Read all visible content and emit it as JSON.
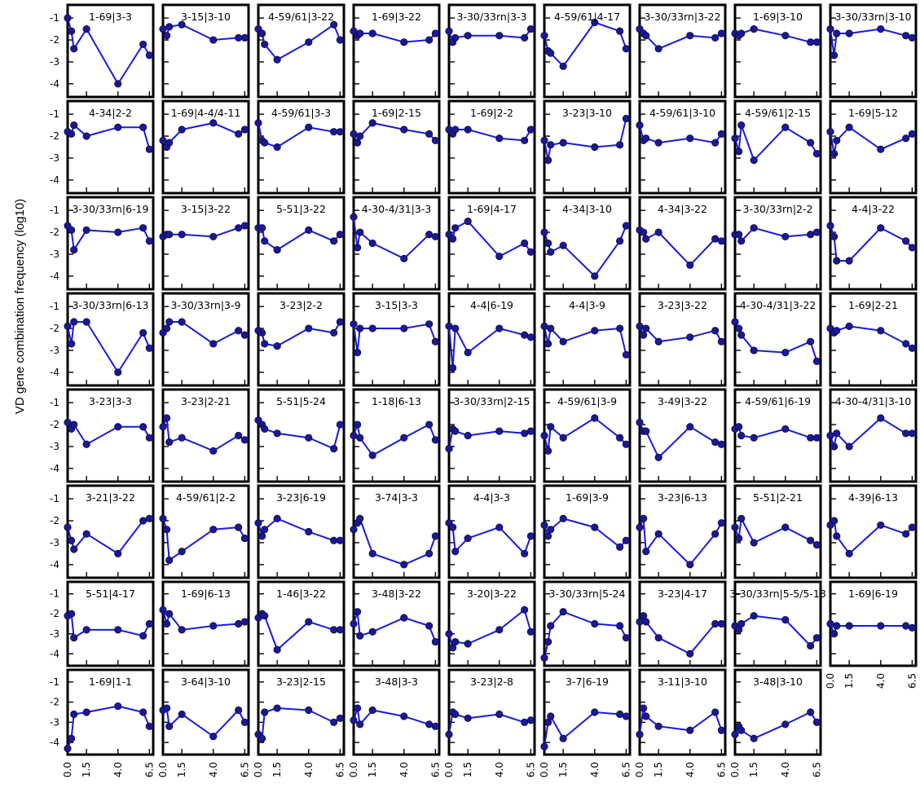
{
  "chart_data": {
    "type": "line",
    "ylabel": "VD gene combination frequency (log10)",
    "x": [
      0.0,
      0.3,
      0.5,
      1.5,
      4.0,
      6.0,
      6.5
    ],
    "x_tick_labels": [
      "0.0",
      "1.5",
      "4.0",
      "6.5"
    ],
    "y_tick_labels": [
      "-1",
      "-2",
      "-3",
      "-4"
    ],
    "ylim": [
      -4.6,
      -0.4
    ],
    "xlim": [
      0,
      6.8
    ],
    "grid": false,
    "legend": "none",
    "line_color": "#1a1adf",
    "marker_color": "#1a1a8c",
    "series": [
      {
        "name": "1-69|3-3",
        "values": [
          -1.0,
          -1.6,
          -2.4,
          -1.5,
          -4.0,
          -2.2,
          -2.7
        ]
      },
      {
        "name": "3-15|3-10",
        "values": [
          -1.5,
          -1.8,
          -1.4,
          -1.3,
          -2.0,
          -1.9,
          -1.9
        ]
      },
      {
        "name": "4-59/61|3-22",
        "values": [
          -1.5,
          -1.7,
          -2.2,
          -2.9,
          -2.1,
          -1.3,
          -2.0
        ]
      },
      {
        "name": "1-69|3-22",
        "values": [
          -1.6,
          -1.8,
          -1.7,
          -1.7,
          -2.1,
          -2.0,
          -1.7
        ]
      },
      {
        "name": "3-30/33rn|3-3",
        "values": [
          -1.6,
          -2.1,
          -1.9,
          -1.8,
          -1.8,
          -1.9,
          -1.5
        ]
      },
      {
        "name": "4-59/61|4-17",
        "values": [
          -1.8,
          -2.5,
          -2.6,
          -3.2,
          -1.2,
          -1.6,
          -2.4
        ]
      },
      {
        "name": "3-30/33rn|3-22",
        "values": [
          -1.5,
          -1.7,
          -1.8,
          -2.4,
          -1.8,
          -1.9,
          -1.7
        ]
      },
      {
        "name": "1-69|3-10",
        "values": [
          -1.7,
          -1.8,
          -1.7,
          -1.5,
          -1.8,
          -2.1,
          -2.1
        ]
      },
      {
        "name": "3-30/33rn|3-10",
        "values": [
          -1.5,
          -2.7,
          -1.7,
          -1.7,
          -1.5,
          -1.8,
          -1.9
        ]
      },
      {
        "name": "4-34|2-2",
        "values": [
          -1.8,
          -1.9,
          -1.5,
          -2.0,
          -1.6,
          -1.6,
          -2.6
        ]
      },
      {
        "name": "1-69|4-4/4-11",
        "values": [
          -2.2,
          -2.5,
          -2.3,
          -1.7,
          -1.4,
          -1.9,
          -1.7
        ]
      },
      {
        "name": "4-59/61|3-3",
        "values": [
          -1.4,
          -2.2,
          -2.3,
          -2.5,
          -1.6,
          -1.8,
          -1.8
        ]
      },
      {
        "name": "1-69|2-15",
        "values": [
          -1.9,
          -2.3,
          -2.0,
          -1.4,
          -1.7,
          -1.9,
          -2.2
        ]
      },
      {
        "name": "1-69|2-2",
        "values": [
          -1.7,
          -1.9,
          -1.7,
          -1.7,
          -2.1,
          -2.2,
          -1.7
        ]
      },
      {
        "name": "3-23|3-10",
        "values": [
          -2.2,
          -3.1,
          -2.4,
          -2.3,
          -2.5,
          -2.4,
          -1.2
        ]
      },
      {
        "name": "4-59/61|3-10",
        "values": [
          -1.5,
          -2.2,
          -2.1,
          -2.3,
          -2.1,
          -2.3,
          -1.9
        ]
      },
      {
        "name": "4-59/61|2-15",
        "values": [
          -2.1,
          -2.7,
          -1.5,
          -3.1,
          -1.6,
          -2.3,
          -2.8
        ]
      },
      {
        "name": "1-69|5-12",
        "values": [
          -1.8,
          -2.8,
          -2.2,
          -1.6,
          -2.6,
          -2.1,
          -1.9
        ]
      },
      {
        "name": "3-30/33rn|6-19",
        "values": [
          -1.7,
          -1.9,
          -2.8,
          -1.9,
          -2.0,
          -1.8,
          -2.4
        ]
      },
      {
        "name": "3-15|3-22",
        "values": [
          -2.2,
          -2.1,
          -2.1,
          -2.1,
          -2.2,
          -1.8,
          -1.7
        ]
      },
      {
        "name": "5-51|3-22",
        "values": [
          -1.8,
          -1.8,
          -2.4,
          -2.8,
          -1.9,
          -2.4,
          -2.1
        ]
      },
      {
        "name": "4-30-4/31|3-3",
        "values": [
          -1.3,
          -2.7,
          -2.0,
          -2.5,
          -3.2,
          -2.1,
          -2.2
        ]
      },
      {
        "name": "1-69|4-17",
        "values": [
          -2.1,
          -2.3,
          -1.8,
          -1.5,
          -3.1,
          -2.5,
          -2.9
        ]
      },
      {
        "name": "4-34|3-10",
        "values": [
          -2.0,
          -2.5,
          -2.9,
          -2.6,
          -4.0,
          -2.4,
          -1.7
        ]
      },
      {
        "name": "4-34|3-22",
        "values": [
          -1.9,
          -2.0,
          -2.3,
          -2.0,
          -3.5,
          -2.3,
          -2.4
        ]
      },
      {
        "name": "3-30/33rn|2-2",
        "values": [
          -2.1,
          -2.1,
          -2.4,
          -1.8,
          -2.2,
          -2.1,
          -2.0
        ]
      },
      {
        "name": "4-4|3-22",
        "values": [
          -1.7,
          -2.2,
          -3.3,
          -3.3,
          -1.8,
          -2.4,
          -2.7
        ]
      },
      {
        "name": "3-30/33rn|6-13",
        "values": [
          -1.9,
          -2.7,
          -1.7,
          -1.7,
          -4.0,
          -2.2,
          -2.9
        ]
      },
      {
        "name": "3-30/33rn|3-9",
        "values": [
          -2.2,
          -2.0,
          -1.7,
          -1.7,
          -2.7,
          -2.1,
          -2.3
        ]
      },
      {
        "name": "3-23|2-2",
        "values": [
          -2.1,
          -2.2,
          -2.7,
          -2.8,
          -2.0,
          -2.2,
          -1.7
        ]
      },
      {
        "name": "3-15|3-3",
        "values": [
          -1.8,
          -3.1,
          -2.0,
          -2.0,
          -2.0,
          -1.8,
          -2.6
        ]
      },
      {
        "name": "4-4|6-19",
        "values": [
          -1.9,
          -3.8,
          -2.0,
          -3.1,
          -2.0,
          -2.3,
          -2.4
        ]
      },
      {
        "name": "4-4|3-9",
        "values": [
          -1.9,
          -2.7,
          -2.0,
          -2.6,
          -2.1,
          -2.0,
          -3.2
        ]
      },
      {
        "name": "3-23|3-22",
        "values": [
          -1.9,
          -2.3,
          -2.0,
          -2.6,
          -2.4,
          -2.1,
          -2.6
        ]
      },
      {
        "name": "4-30-4/31|3-22",
        "values": [
          -1.7,
          -2.0,
          -2.3,
          -3.0,
          -3.1,
          -2.6,
          -3.5
        ]
      },
      {
        "name": "1-69|2-21",
        "values": [
          -2.0,
          -2.2,
          -2.1,
          -1.9,
          -2.1,
          -2.7,
          -2.9
        ]
      },
      {
        "name": "3-23|3-3",
        "values": [
          -1.9,
          -2.2,
          -2.0,
          -2.9,
          -2.1,
          -2.1,
          -2.6
        ]
      },
      {
        "name": "3-23|2-21",
        "values": [
          -2.1,
          -1.7,
          -2.8,
          -2.6,
          -3.2,
          -2.5,
          -2.7
        ]
      },
      {
        "name": "5-51|5-24",
        "values": [
          -1.8,
          -2.0,
          -2.2,
          -2.4,
          -2.6,
          -3.1,
          -2.0
        ]
      },
      {
        "name": "1-18|6-13",
        "values": [
          -2.5,
          -2.0,
          -2.6,
          -3.4,
          -2.6,
          -2.0,
          -2.7
        ]
      },
      {
        "name": "3-30/33rn|2-15",
        "values": [
          -3.1,
          -2.2,
          -2.3,
          -2.5,
          -2.3,
          -2.4,
          -2.3
        ]
      },
      {
        "name": "4-59/61|3-9",
        "values": [
          -2.5,
          -3.2,
          -2.1,
          -2.6,
          -1.7,
          -2.6,
          -2.9
        ]
      },
      {
        "name": "3-49|3-22",
        "values": [
          -1.9,
          -2.3,
          -2.3,
          -3.5,
          -2.1,
          -2.8,
          -2.9
        ]
      },
      {
        "name": "4-59/61|6-19",
        "values": [
          -2.2,
          -2.1,
          -2.5,
          -2.6,
          -2.2,
          -2.6,
          -2.6
        ]
      },
      {
        "name": "4-30-4/31|3-10",
        "values": [
          -2.5,
          -3.0,
          -2.4,
          -3.0,
          -1.7,
          -2.4,
          -2.4
        ]
      },
      {
        "name": "3-21|3-22",
        "values": [
          -2.3,
          -2.9,
          -3.3,
          -2.6,
          -3.5,
          -2.0,
          -1.9
        ]
      },
      {
        "name": "4-59/61|2-2",
        "values": [
          -1.9,
          -2.4,
          -3.8,
          -3.4,
          -2.4,
          -2.3,
          -2.8
        ]
      },
      {
        "name": "3-23|6-19",
        "values": [
          -2.1,
          -2.7,
          -2.4,
          -1.9,
          -2.5,
          -2.9,
          -2.9
        ]
      },
      {
        "name": "3-74|3-3",
        "values": [
          -2.4,
          -2.1,
          -1.9,
          -3.5,
          -4.0,
          -3.5,
          -2.7
        ]
      },
      {
        "name": "4-4|3-3",
        "values": [
          -2.1,
          -2.3,
          -3.4,
          -2.8,
          -2.3,
          -3.5,
          -2.7
        ]
      },
      {
        "name": "1-69|3-9",
        "values": [
          -2.2,
          -2.7,
          -2.4,
          -1.9,
          -2.3,
          -3.2,
          -2.9
        ]
      },
      {
        "name": "3-23|6-13",
        "values": [
          -2.3,
          -1.9,
          -3.4,
          -2.6,
          -4.0,
          -2.6,
          -2.1
        ]
      },
      {
        "name": "5-51|2-21",
        "values": [
          -2.3,
          -2.8,
          -1.9,
          -3.0,
          -2.3,
          -2.9,
          -3.1
        ]
      },
      {
        "name": "4-39|6-13",
        "values": [
          -2.2,
          -2.0,
          -2.7,
          -3.5,
          -2.2,
          -2.6,
          -2.3
        ]
      },
      {
        "name": "5-51|4-17",
        "values": [
          -2.1,
          -2.0,
          -3.2,
          -2.8,
          -2.8,
          -3.1,
          -2.5
        ]
      },
      {
        "name": "1-69|6-13",
        "values": [
          -1.8,
          -2.5,
          -2.0,
          -2.8,
          -2.6,
          -2.5,
          -2.4
        ]
      },
      {
        "name": "1-46|3-22",
        "values": [
          -2.2,
          -2.0,
          -2.1,
          -3.8,
          -2.4,
          -2.8,
          -2.8
        ]
      },
      {
        "name": "3-48|3-22",
        "values": [
          -2.5,
          -1.9,
          -3.1,
          -2.9,
          -2.2,
          -2.6,
          -3.4
        ]
      },
      {
        "name": "3-20|3-22",
        "values": [
          -3.0,
          -3.7,
          -3.4,
          -3.5,
          -2.8,
          -1.8,
          -2.9
        ]
      },
      {
        "name": "3-30/33rn|5-24",
        "values": [
          -4.2,
          -3.4,
          -2.6,
          -1.9,
          -2.5,
          -2.6,
          -3.2
        ]
      },
      {
        "name": "3-23|4-17",
        "values": [
          -2.4,
          -2.1,
          -2.4,
          -3.2,
          -4.0,
          -2.5,
          -2.5
        ]
      },
      {
        "name": "3-30/33rn|5-5/5-18",
        "values": [
          -2.6,
          -2.8,
          -2.5,
          -2.1,
          -2.3,
          -3.6,
          -3.2
        ]
      },
      {
        "name": "1-69|6-19",
        "values": [
          -2.5,
          -3.0,
          -2.6,
          -2.6,
          -2.6,
          -2.6,
          -2.7
        ]
      },
      {
        "name": "1-69|1-1",
        "values": [
          -4.3,
          -3.8,
          -2.6,
          -2.5,
          -2.2,
          -2.5,
          -3.2
        ]
      },
      {
        "name": "3-64|3-10",
        "values": [
          -2.4,
          -2.3,
          -3.2,
          -2.6,
          -3.7,
          -2.4,
          -3.0
        ]
      },
      {
        "name": "3-23|2-15",
        "values": [
          -3.6,
          -3.8,
          -2.5,
          -2.3,
          -2.4,
          -3.0,
          -2.8
        ]
      },
      {
        "name": "3-48|3-3",
        "values": [
          -2.9,
          -2.3,
          -3.1,
          -2.4,
          -2.7,
          -3.1,
          -3.2
        ]
      },
      {
        "name": "3-23|2-8",
        "values": [
          -3.6,
          -2.5,
          -2.6,
          -2.8,
          -2.6,
          -3.0,
          -2.9
        ]
      },
      {
        "name": "3-7|6-19",
        "values": [
          -4.2,
          -3.0,
          -2.7,
          -3.8,
          -2.5,
          -2.6,
          -2.7
        ]
      },
      {
        "name": "3-11|3-10",
        "values": [
          -3.6,
          -2.3,
          -2.7,
          -3.2,
          -3.4,
          -2.5,
          -3.4
        ]
      },
      {
        "name": "3-48|3-10",
        "values": [
          -3.6,
          -3.2,
          -3.4,
          -3.8,
          -3.1,
          -2.5,
          -3.0
        ]
      }
    ]
  }
}
